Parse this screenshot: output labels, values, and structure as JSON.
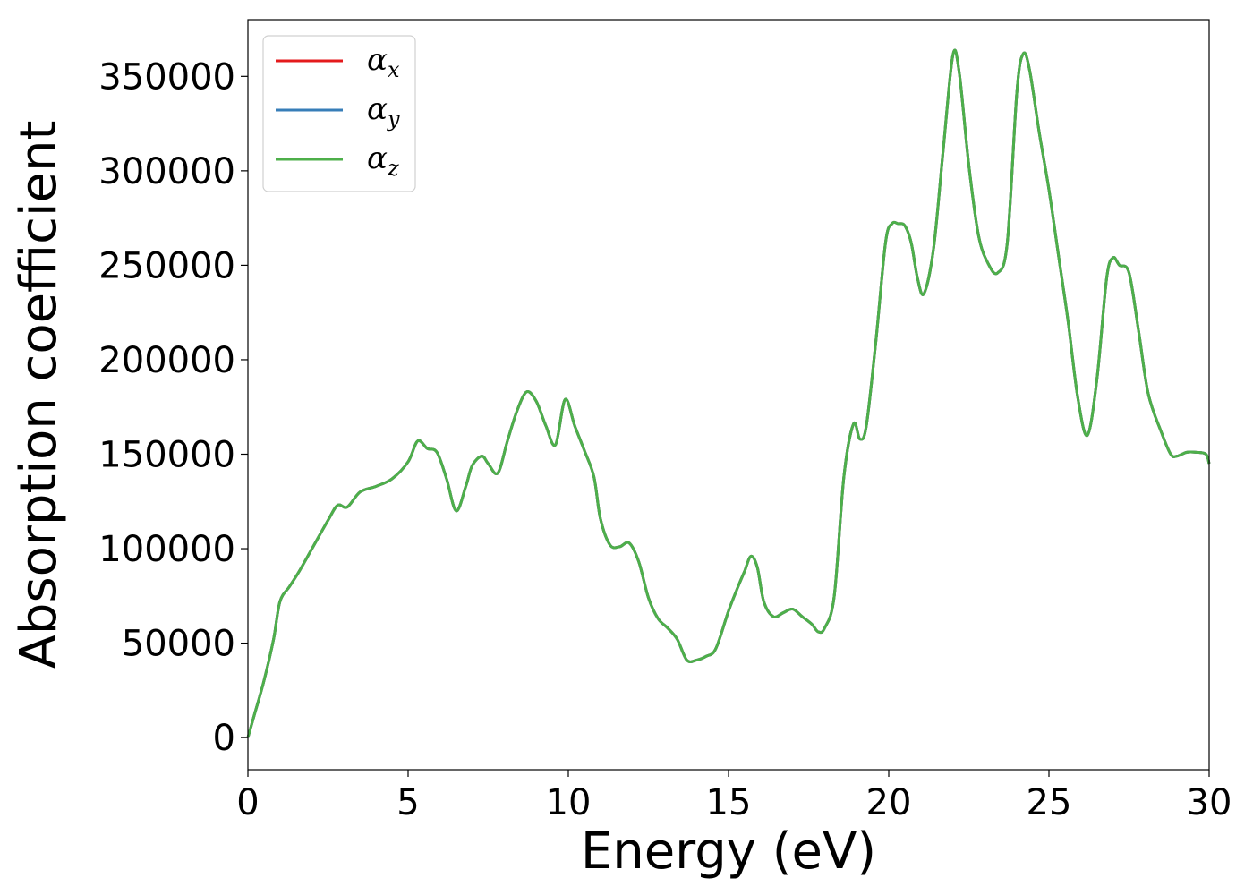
{
  "chart_data": {
    "type": "line",
    "xlabel": "Energy (eV)",
    "ylabel": "Absorption coefficient",
    "xlim": [
      0,
      30
    ],
    "ylim": [
      -17000,
      380000
    ],
    "xticks": [
      0,
      5,
      10,
      15,
      20,
      25,
      30
    ],
    "yticks": [
      0,
      50000,
      100000,
      150000,
      200000,
      250000,
      300000,
      350000
    ],
    "grid": false,
    "legend_position": "top-left",
    "series": [
      {
        "name": "α",
        "subscript": "x",
        "color": "#e41a1c",
        "x": [
          0,
          0.2,
          0.5,
          0.8,
          1.0,
          1.3,
          1.6,
          2.0,
          2.5,
          2.8,
          3.1,
          3.5,
          4.0,
          4.5,
          5.0,
          5.3,
          5.6,
          5.9,
          6.2,
          6.5,
          6.8,
          7.0,
          7.3,
          7.5,
          7.8,
          8.1,
          8.4,
          8.7,
          9.0,
          9.3,
          9.6,
          9.9,
          10.2,
          10.5,
          10.8,
          11.0,
          11.3,
          11.6,
          11.9,
          12.2,
          12.5,
          12.8,
          13.1,
          13.4,
          13.7,
          14.0,
          14.3,
          14.6,
          15.0,
          15.3,
          15.5,
          15.7,
          15.9,
          16.1,
          16.4,
          16.7,
          17.0,
          17.3,
          17.6,
          17.8,
          18.0,
          18.3,
          18.6,
          18.9,
          19.1,
          19.3,
          19.6,
          19.9,
          20.1,
          20.3,
          20.5,
          20.7,
          20.9,
          21.1,
          21.4,
          21.7,
          22.0,
          22.2,
          22.5,
          22.8,
          23.1,
          23.4,
          23.7,
          24.0,
          24.2,
          24.4,
          24.7,
          25.0,
          25.3,
          25.6,
          25.9,
          26.2,
          26.5,
          26.8,
          27.0,
          27.2,
          27.5,
          27.8,
          28.1,
          28.5,
          28.8,
          29.0,
          29.3,
          29.6,
          29.9,
          30.0
        ],
        "y": [
          0,
          12000,
          30000,
          52000,
          72000,
          80000,
          88000,
          100000,
          115000,
          123000,
          122000,
          130000,
          133000,
          137000,
          146000,
          157000,
          153000,
          151000,
          137000,
          120000,
          133000,
          144000,
          149000,
          145000,
          140000,
          157000,
          173000,
          183000,
          178000,
          165000,
          155000,
          179000,
          165000,
          152000,
          138000,
          116000,
          102000,
          101000,
          103000,
          93000,
          74000,
          63000,
          58000,
          52000,
          41000,
          41000,
          43000,
          47000,
          67000,
          80000,
          88000,
          96000,
          90000,
          72000,
          64000,
          66000,
          68000,
          64000,
          60000,
          56000,
          58000,
          75000,
          138000,
          166000,
          158000,
          165000,
          210000,
          262000,
          272000,
          272000,
          271000,
          262000,
          243000,
          235000,
          259000,
          311000,
          361000,
          352000,
          303000,
          266000,
          251000,
          246000,
          262000,
          342000,
          362000,
          353000,
          320000,
          290000,
          255000,
          220000,
          180000,
          160000,
          190000,
          243000,
          254000,
          250000,
          246000,
          215000,
          182000,
          162000,
          150000,
          149000,
          151000,
          151000,
          150000,
          145000
        ]
      },
      {
        "name": "α",
        "subscript": "y",
        "color": "#377eb8",
        "x": [
          0,
          0.2,
          0.5,
          0.8,
          1.0,
          1.3,
          1.6,
          2.0,
          2.5,
          2.8,
          3.1,
          3.5,
          4.0,
          4.5,
          5.0,
          5.3,
          5.6,
          5.9,
          6.2,
          6.5,
          6.8,
          7.0,
          7.3,
          7.5,
          7.8,
          8.1,
          8.4,
          8.7,
          9.0,
          9.3,
          9.6,
          9.9,
          10.2,
          10.5,
          10.8,
          11.0,
          11.3,
          11.6,
          11.9,
          12.2,
          12.5,
          12.8,
          13.1,
          13.4,
          13.7,
          14.0,
          14.3,
          14.6,
          15.0,
          15.3,
          15.5,
          15.7,
          15.9,
          16.1,
          16.4,
          16.7,
          17.0,
          17.3,
          17.6,
          17.8,
          18.0,
          18.3,
          18.6,
          18.9,
          19.1,
          19.3,
          19.6,
          19.9,
          20.1,
          20.3,
          20.5,
          20.7,
          20.9,
          21.1,
          21.4,
          21.7,
          22.0,
          22.2,
          22.5,
          22.8,
          23.1,
          23.4,
          23.7,
          24.0,
          24.2,
          24.4,
          24.7,
          25.0,
          25.3,
          25.6,
          25.9,
          26.2,
          26.5,
          26.8,
          27.0,
          27.2,
          27.5,
          27.8,
          28.1,
          28.5,
          28.8,
          29.0,
          29.3,
          29.6,
          29.9,
          30.0
        ],
        "y": [
          0,
          12000,
          30000,
          52000,
          72000,
          80000,
          88000,
          100000,
          115000,
          123000,
          122000,
          130000,
          133000,
          137000,
          146000,
          157000,
          153000,
          151000,
          137000,
          120000,
          133000,
          144000,
          149000,
          145000,
          140000,
          157000,
          173000,
          183000,
          178000,
          165000,
          155000,
          179000,
          165000,
          152000,
          138000,
          116000,
          102000,
          101000,
          103000,
          93000,
          74000,
          63000,
          58000,
          52000,
          41000,
          41000,
          43000,
          47000,
          67000,
          80000,
          88000,
          96000,
          90000,
          72000,
          64000,
          66000,
          68000,
          64000,
          60000,
          56000,
          58000,
          75000,
          138000,
          166000,
          158000,
          165000,
          210000,
          262000,
          272000,
          272000,
          271000,
          262000,
          243000,
          235000,
          259000,
          311000,
          361000,
          352000,
          303000,
          266000,
          251000,
          246000,
          262000,
          342000,
          362000,
          353000,
          320000,
          290000,
          255000,
          220000,
          180000,
          160000,
          190000,
          243000,
          254000,
          250000,
          246000,
          215000,
          182000,
          162000,
          150000,
          149000,
          151000,
          151000,
          150000,
          145000
        ]
      },
      {
        "name": "α",
        "subscript": "z",
        "color": "#4daf4a",
        "x": [
          0,
          0.2,
          0.5,
          0.8,
          1.0,
          1.3,
          1.6,
          2.0,
          2.5,
          2.8,
          3.1,
          3.5,
          4.0,
          4.5,
          5.0,
          5.3,
          5.6,
          5.9,
          6.2,
          6.5,
          6.8,
          7.0,
          7.3,
          7.5,
          7.8,
          8.1,
          8.4,
          8.7,
          9.0,
          9.3,
          9.6,
          9.9,
          10.2,
          10.5,
          10.8,
          11.0,
          11.3,
          11.6,
          11.9,
          12.2,
          12.5,
          12.8,
          13.1,
          13.4,
          13.7,
          14.0,
          14.3,
          14.6,
          15.0,
          15.3,
          15.5,
          15.7,
          15.9,
          16.1,
          16.4,
          16.7,
          17.0,
          17.3,
          17.6,
          17.8,
          18.0,
          18.3,
          18.6,
          18.9,
          19.1,
          19.3,
          19.6,
          19.9,
          20.1,
          20.3,
          20.5,
          20.7,
          20.9,
          21.1,
          21.4,
          21.7,
          22.0,
          22.2,
          22.5,
          22.8,
          23.1,
          23.4,
          23.7,
          24.0,
          24.2,
          24.4,
          24.7,
          25.0,
          25.3,
          25.6,
          25.9,
          26.2,
          26.5,
          26.8,
          27.0,
          27.2,
          27.5,
          27.8,
          28.1,
          28.5,
          28.8,
          29.0,
          29.3,
          29.6,
          29.9,
          30.0
        ],
        "y": [
          0,
          12000,
          30000,
          52000,
          72000,
          80000,
          88000,
          100000,
          115000,
          123000,
          122000,
          130000,
          133000,
          137000,
          146000,
          157000,
          153000,
          151000,
          137000,
          120000,
          133000,
          144000,
          149000,
          145000,
          140000,
          157000,
          173000,
          183000,
          178000,
          165000,
          155000,
          179000,
          165000,
          152000,
          138000,
          116000,
          102000,
          101000,
          103000,
          93000,
          74000,
          63000,
          58000,
          52000,
          41000,
          41000,
          43000,
          47000,
          67000,
          80000,
          88000,
          96000,
          90000,
          72000,
          64000,
          66000,
          68000,
          64000,
          60000,
          56000,
          58000,
          75000,
          138000,
          166000,
          158000,
          165000,
          210000,
          262000,
          272000,
          272000,
          271000,
          262000,
          243000,
          235000,
          259000,
          311000,
          361000,
          352000,
          303000,
          266000,
          251000,
          246000,
          262000,
          342000,
          362000,
          353000,
          320000,
          290000,
          255000,
          220000,
          180000,
          160000,
          190000,
          243000,
          254000,
          250000,
          246000,
          215000,
          182000,
          162000,
          150000,
          149000,
          151000,
          151000,
          150000,
          145000
        ]
      }
    ]
  }
}
